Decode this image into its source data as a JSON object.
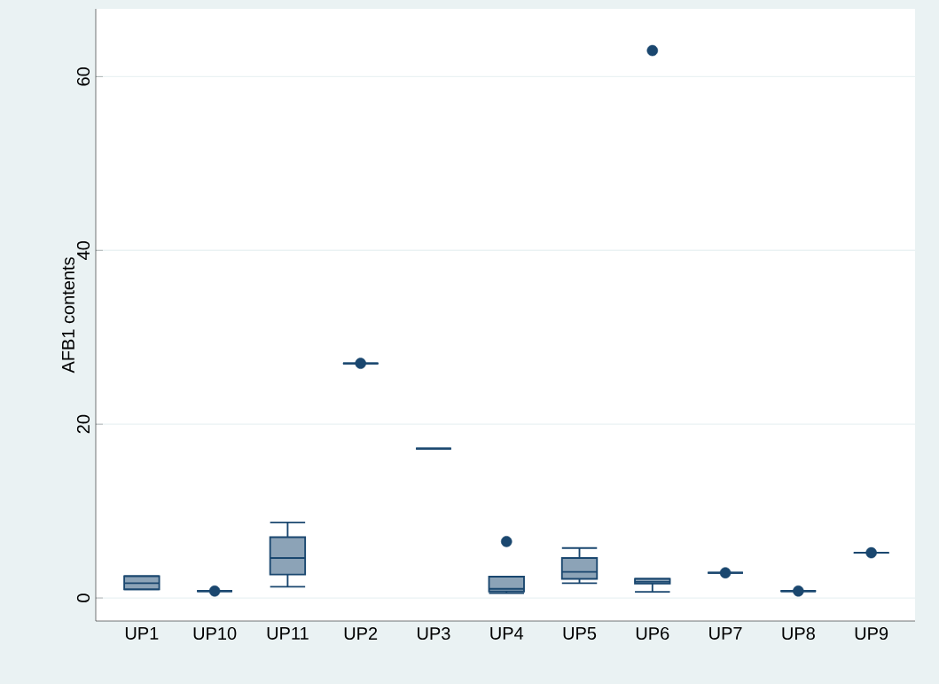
{
  "chart_data": {
    "type": "box",
    "ylabel": "AFB1 contents",
    "categories": [
      "UP1",
      "UP10",
      "UP11",
      "UP2",
      "UP3",
      "UP4",
      "UP5",
      "UP6",
      "UP7",
      "UP8",
      "UP9"
    ],
    "boxes": [
      {
        "low": 1.0,
        "q1": 1.0,
        "median": 1.7,
        "q3": 2.5,
        "high": 2.5
      },
      {
        "low": 0.8,
        "q1": 0.8,
        "median": 0.8,
        "q3": 0.8,
        "high": 0.8,
        "outliers": [
          0.8
        ]
      },
      {
        "low": 1.3,
        "q1": 2.7,
        "median": 4.6,
        "q3": 7.0,
        "high": 8.7
      },
      {
        "low": 27,
        "q1": 27,
        "median": 27,
        "q3": 27,
        "high": 27,
        "outliers": [
          27
        ]
      },
      {
        "low": 17.2,
        "q1": 17.2,
        "median": 17.2,
        "q3": 17.2,
        "high": 17.2
      },
      {
        "low": 0.55,
        "q1": 0.75,
        "median": 1.05,
        "q3": 2.45,
        "high": 2.45,
        "outliers": [
          6.5
        ]
      },
      {
        "low": 1.7,
        "q1": 2.2,
        "median": 3.0,
        "q3": 4.6,
        "high": 5.75
      },
      {
        "low": 0.7,
        "q1": 1.65,
        "median": 1.85,
        "q3": 2.2,
        "high": 2.2,
        "outliers": [
          63
        ]
      },
      {
        "low": 2.9,
        "q1": 2.9,
        "median": 2.9,
        "q3": 2.9,
        "high": 2.9,
        "outliers": [
          2.9
        ]
      },
      {
        "low": 0.8,
        "q1": 0.8,
        "median": 0.8,
        "q3": 0.8,
        "high": 0.8,
        "outliers": [
          0.8
        ]
      },
      {
        "low": 5.2,
        "q1": 5.2,
        "median": 5.2,
        "q3": 5.2,
        "high": 5.2,
        "outliers": [
          5.2
        ]
      }
    ],
    "color": "#1a476f",
    "ylim": [
      -2.65,
      67.8
    ],
    "yticks": [
      0,
      20,
      40,
      60
    ],
    "grid": "y",
    "marker": "circle"
  }
}
